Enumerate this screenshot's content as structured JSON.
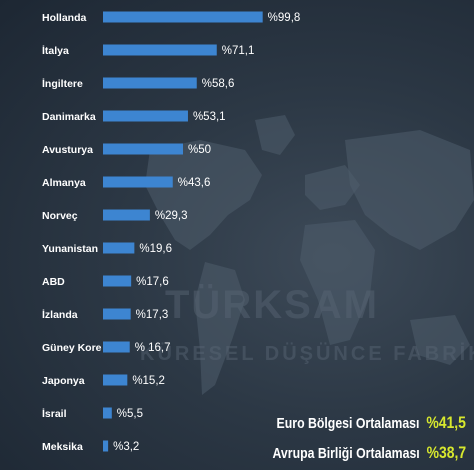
{
  "chart_data": {
    "type": "bar",
    "orientation": "horizontal",
    "categories": [
      "Hollanda",
      "İtalya",
      "İngiltere",
      "Danimarka",
      "Avusturya",
      "Almanya",
      "Norveç",
      "Yunanistan",
      "ABD",
      "İzlanda",
      "Güney Kore",
      "Japonya",
      "İsrail",
      "Meksika"
    ],
    "values": [
      99.8,
      71.1,
      58.6,
      53.1,
      50,
      43.6,
      29.3,
      19.6,
      17.6,
      17.3,
      16.7,
      15.2,
      5.5,
      3.2
    ],
    "value_labels": [
      "%99,8",
      "%71,1",
      "%58,6",
      "%53,1",
      "%50",
      "%43,6",
      "%29,3",
      "%19,6",
      "%17,6",
      "%17,3",
      "% 16,7",
      "%15,2",
      "%5,5",
      "%3,2"
    ],
    "bar_color": "#3d85d1",
    "grid": false
  },
  "averages": [
    {
      "label": "Euro Bölgesi Ortalaması",
      "value": "%41,5"
    },
    {
      "label": "Avrupa Birliği Ortalaması",
      "value": "%38,7"
    }
  ],
  "watermark": {
    "main": "TÜRKSAM",
    "sub": "KÜRESEL DÜŞÜNCE FABRİKASI"
  },
  "colors": {
    "background": "#1f2a37",
    "accent_value": "#d7e82e"
  }
}
